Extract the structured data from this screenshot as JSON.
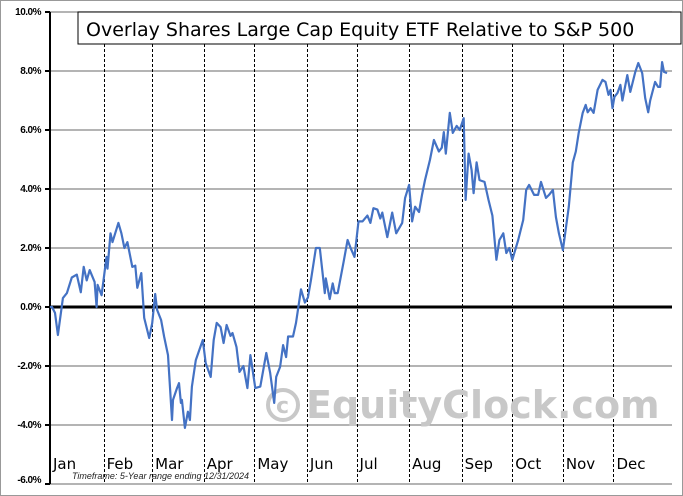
{
  "chart_data": {
    "type": "line",
    "title": "Overlay Shares Large Cap Equity ETF Relative to S&P 500",
    "xlabel": "",
    "ylabel": "",
    "footnote": "Timeframe: 5-Year range ending 12/31/2024",
    "watermark": "EquityClock.com",
    "ylim": [
      -6,
      10
    ],
    "xlim": [
      0,
      250
    ],
    "yticks": [
      -6,
      -4,
      -2,
      0,
      2,
      4,
      6,
      8,
      10
    ],
    "ytick_labels": [
      "-6.0%",
      "-4.0%",
      "-2.0%",
      "0.0%",
      "2.0%",
      "4.0%",
      "6.0%",
      "8.0%",
      "10.0%"
    ],
    "grid": true,
    "month_labels": [
      "Jan",
      "Feb",
      "Mar",
      "Apr",
      "May",
      "Jun",
      "Jul",
      "Aug",
      "Sep",
      "Oct",
      "Nov",
      "Dec"
    ],
    "month_boundaries": [
      21.6,
      41.2,
      62,
      82.4,
      103.6,
      123.6,
      144.8,
      166,
      186.4,
      206.8,
      227.2
    ],
    "line_color": "#4472c4",
    "series": [
      {
        "name": "Relative performance",
        "points": [
          [
            0,
            0
          ],
          [
            0.8,
            0
          ],
          [
            2,
            -0.2
          ],
          [
            3.2,
            -0.95
          ],
          [
            5.2,
            0.3
          ],
          [
            6.8,
            0.47
          ],
          [
            8.8,
            1.0
          ],
          [
            10.8,
            1.1
          ],
          [
            12.4,
            0.5
          ],
          [
            13.6,
            1.36
          ],
          [
            14.8,
            0.9
          ],
          [
            16,
            1.25
          ],
          [
            18,
            0.85
          ],
          [
            18.8,
            0
          ],
          [
            19.2,
            0.75
          ],
          [
            20.8,
            0.4
          ],
          [
            22.8,
            1.7
          ],
          [
            23.2,
            1.3
          ],
          [
            24.4,
            2.5
          ],
          [
            25.2,
            2.2
          ],
          [
            27.6,
            2.85
          ],
          [
            28.8,
            2.5
          ],
          [
            30,
            2.0
          ],
          [
            31.2,
            2.2
          ],
          [
            33.2,
            1.36
          ],
          [
            34.4,
            1.4
          ],
          [
            35.2,
            0.65
          ],
          [
            36.8,
            1.15
          ],
          [
            38,
            -0.37
          ],
          [
            40,
            -1.05
          ],
          [
            41.2,
            -0.55
          ],
          [
            42.4,
            0.44
          ],
          [
            43.2,
            -0.1
          ],
          [
            44.8,
            -0.44
          ],
          [
            46,
            -1.0
          ],
          [
            47.6,
            -1.63
          ],
          [
            49.2,
            -3.83
          ],
          [
            49.6,
            -3.15
          ],
          [
            51.2,
            -2.75
          ],
          [
            52,
            -2.58
          ],
          [
            52.8,
            -3.25
          ],
          [
            53.2,
            -3.15
          ],
          [
            54.4,
            -4.1
          ],
          [
            55.6,
            -3.55
          ],
          [
            56.4,
            -3.83
          ],
          [
            57.2,
            -2.7
          ],
          [
            58.8,
            -1.8
          ],
          [
            61.6,
            -1.12
          ],
          [
            62.8,
            -1.9
          ],
          [
            64.8,
            -2.37
          ],
          [
            66,
            -1.12
          ],
          [
            67.2,
            -0.54
          ],
          [
            68.8,
            -0.68
          ],
          [
            70,
            -1.22
          ],
          [
            71.2,
            -0.61
          ],
          [
            72.8,
            -0.98
          ],
          [
            73.6,
            -0.88
          ],
          [
            75.2,
            -1.36
          ],
          [
            76.4,
            -2.2
          ],
          [
            78,
            -2.0
          ],
          [
            79.6,
            -2.75
          ],
          [
            80.8,
            -1.63
          ],
          [
            82.8,
            -2.75
          ],
          [
            84.8,
            -2.7
          ],
          [
            87.2,
            -1.56
          ],
          [
            88.8,
            -2.24
          ],
          [
            90.4,
            -3.25
          ],
          [
            91.2,
            -2.37
          ],
          [
            92.8,
            -2.03
          ],
          [
            94,
            -1.29
          ],
          [
            95.2,
            -1.7
          ],
          [
            96,
            -1.0
          ],
          [
            98,
            -1.0
          ],
          [
            99.2,
            -0.54
          ],
          [
            101.2,
            0.6
          ],
          [
            102.8,
            0.15
          ],
          [
            104,
            0.32
          ],
          [
            105.2,
            0.9
          ],
          [
            107.2,
            2.0
          ],
          [
            108.8,
            2.0
          ],
          [
            110.8,
            0.47
          ],
          [
            111.2,
            0.97
          ],
          [
            112.8,
            0.27
          ],
          [
            114,
            0.8
          ],
          [
            114.8,
            0.47
          ],
          [
            116,
            0.47
          ],
          [
            118.4,
            1.53
          ],
          [
            120,
            2.27
          ],
          [
            121.2,
            2.0
          ],
          [
            122.8,
            1.7
          ],
          [
            124.4,
            2.9
          ],
          [
            126,
            2.9
          ],
          [
            128,
            3.1
          ],
          [
            129.2,
            2.85
          ],
          [
            130.4,
            3.35
          ],
          [
            132,
            3.3
          ],
          [
            133.2,
            3.0
          ],
          [
            134,
            3.2
          ],
          [
            136,
            2.37
          ],
          [
            138,
            3.2
          ],
          [
            139.6,
            2.5
          ],
          [
            142,
            2.85
          ],
          [
            143.2,
            3.7
          ],
          [
            144.8,
            4.14
          ],
          [
            146,
            2.9
          ],
          [
            147.2,
            3.4
          ],
          [
            148.8,
            3.22
          ],
          [
            150,
            3.8
          ],
          [
            151.2,
            4.3
          ],
          [
            153.2,
            4.98
          ],
          [
            154.8,
            5.66
          ],
          [
            156.8,
            5.27
          ],
          [
            158,
            5.4
          ],
          [
            158.8,
            5.93
          ],
          [
            159.6,
            5.2
          ],
          [
            161.2,
            6.58
          ],
          [
            162.4,
            5.9
          ],
          [
            164,
            6.14
          ],
          [
            165.2,
            6.0
          ],
          [
            166.8,
            6.4
          ],
          [
            167.6,
            3.63
          ],
          [
            168.8,
            5.2
          ],
          [
            170,
            4.64
          ],
          [
            170.8,
            3.86
          ],
          [
            172,
            4.9
          ],
          [
            173.2,
            4.3
          ],
          [
            175.2,
            4.24
          ],
          [
            176.8,
            3.63
          ],
          [
            178.4,
            3.1
          ],
          [
            180,
            1.6
          ],
          [
            181.2,
            2.27
          ],
          [
            182.8,
            2.5
          ],
          [
            184,
            1.83
          ],
          [
            185.2,
            2.0
          ],
          [
            186.4,
            1.6
          ],
          [
            188.8,
            2.27
          ],
          [
            190.8,
            2.95
          ],
          [
            192,
            3.97
          ],
          [
            193.2,
            4.14
          ],
          [
            195.2,
            3.8
          ],
          [
            196.8,
            3.8
          ],
          [
            198,
            4.24
          ],
          [
            200,
            3.7
          ],
          [
            201.2,
            3.8
          ],
          [
            202.8,
            3.97
          ],
          [
            204,
            3.05
          ],
          [
            205.2,
            2.5
          ],
          [
            206.8,
            1.93
          ],
          [
            209.2,
            3.4
          ],
          [
            210.8,
            4.9
          ],
          [
            212,
            5.27
          ],
          [
            213.2,
            5.9
          ],
          [
            214.8,
            6.58
          ],
          [
            216,
            6.85
          ],
          [
            216.8,
            6.6
          ],
          [
            218,
            6.74
          ],
          [
            219.2,
            6.58
          ],
          [
            220.8,
            7.36
          ],
          [
            222.8,
            7.7
          ],
          [
            224,
            7.63
          ],
          [
            225.2,
            7.19
          ],
          [
            226,
            7.36
          ],
          [
            226.8,
            6.74
          ],
          [
            227.6,
            7.12
          ],
          [
            228.8,
            7.25
          ],
          [
            230,
            7.53
          ],
          [
            230.8,
            7.0
          ],
          [
            232.8,
            7.86
          ],
          [
            234,
            7.29
          ],
          [
            236,
            7.97
          ],
          [
            237.2,
            8.27
          ],
          [
            238.8,
            7.93
          ],
          [
            240,
            7.08
          ],
          [
            241.2,
            6.6
          ],
          [
            242,
            7.0
          ],
          [
            244,
            7.63
          ],
          [
            245.2,
            7.46
          ],
          [
            246,
            7.46
          ],
          [
            246.8,
            8.3
          ],
          [
            247.6,
            7.97
          ],
          [
            248.8,
            7.93
          ]
        ]
      }
    ]
  }
}
